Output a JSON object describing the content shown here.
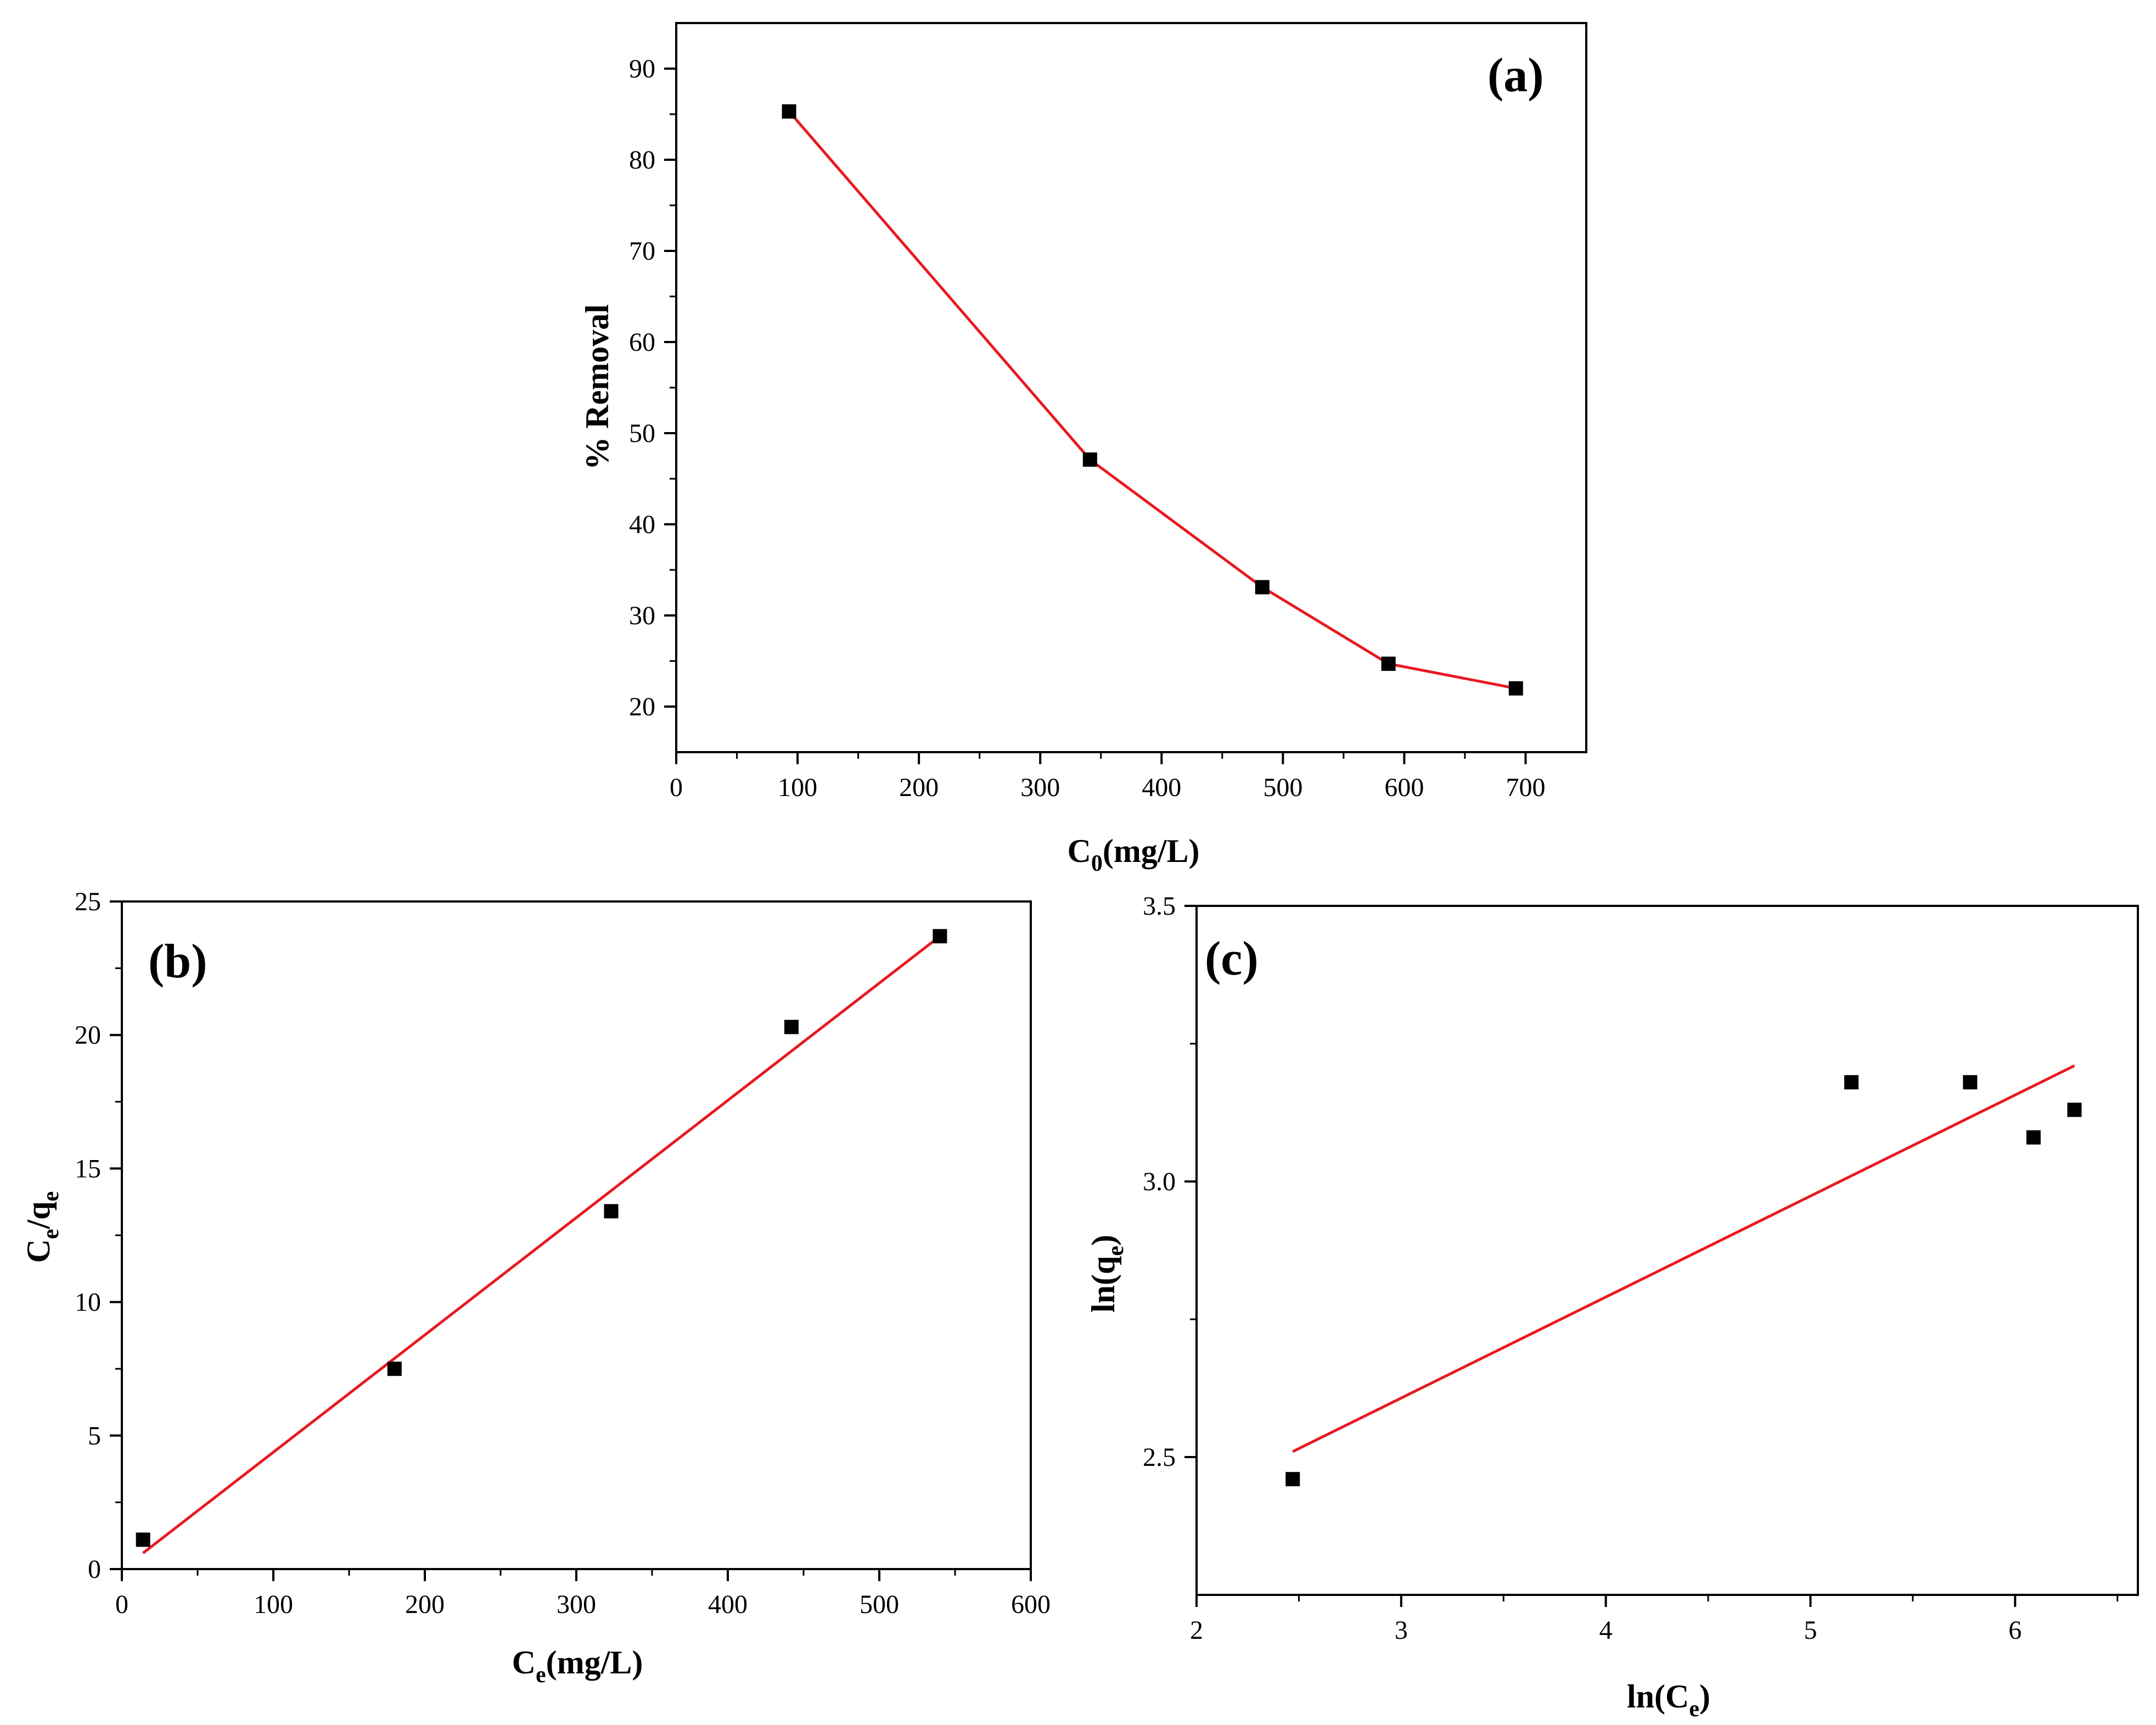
{
  "colors": {
    "line": "#e8191f",
    "marker": "#000000",
    "axis": "#000000",
    "background": "#ffffff"
  },
  "chart_data": [
    {
      "panel": "(a)",
      "type": "line",
      "marker": "square",
      "xlabel_main": "C",
      "xlabel_sub": "0",
      "xlabel_tail": "(mg/L)",
      "ylabel": "% Removal",
      "xlim": [
        0,
        750
      ],
      "ylim": [
        15,
        95
      ],
      "xticks": [
        "0",
        "100",
        "200",
        "300",
        "400",
        "500",
        "600",
        "700"
      ],
      "yticks": [
        "20",
        "30",
        "40",
        "50",
        "60",
        "70",
        "80",
        "90"
      ],
      "grid": false,
      "series": [
        {
          "x": [
            93,
            341,
            483,
            587,
            692
          ],
          "y": [
            85.3,
            47.1,
            33.1,
            24.7,
            22.0
          ]
        }
      ],
      "fit_line": {
        "x": [
          93,
          341,
          483,
          587,
          692
        ],
        "y": [
          85.3,
          47.1,
          33.1,
          24.7,
          22.0
        ]
      }
    },
    {
      "panel": "(b)",
      "type": "scatter",
      "marker": "square",
      "xlabel_main": "C",
      "xlabel_sub": "e",
      "xlabel_tail": "(mg/L)",
      "ylabel_main": "C",
      "ylabel_sub": "e",
      "ylabel_tail": "/q",
      "ylabel_sub2": "e",
      "xlim": [
        0,
        600
      ],
      "ylim": [
        0,
        25
      ],
      "xticks": [
        "0",
        "100",
        "200",
        "300",
        "400",
        "500",
        "600"
      ],
      "yticks": [
        "0",
        "5",
        "10",
        "15",
        "20",
        "25"
      ],
      "grid": false,
      "series": [
        {
          "x": [
            14,
            180,
            323,
            442,
            540
          ],
          "y": [
            1.1,
            7.5,
            13.4,
            20.3,
            23.7
          ]
        }
      ],
      "fit_line": {
        "x": [
          14,
          540
        ],
        "y": [
          0.6,
          23.7
        ]
      }
    },
    {
      "panel": "(c)",
      "type": "scatter",
      "marker": "square",
      "xlabel_main": "ln(C",
      "xlabel_sub": "e",
      "xlabel_tail": ")",
      "ylabel_main": "ln(q",
      "ylabel_sub": "e",
      "ylabel_tail": ")",
      "xlim": [
        2,
        6.6
      ],
      "ylim": [
        2.25,
        3.5
      ],
      "xticks": [
        "2",
        "3",
        "4",
        "5",
        "6"
      ],
      "yticks": [
        "2.5",
        "3.0",
        "3.5"
      ],
      "grid": false,
      "series": [
        {
          "x": [
            2.47,
            5.2,
            5.78,
            6.09,
            6.29
          ],
          "y": [
            2.46,
            3.18,
            3.18,
            3.08,
            3.13
          ]
        }
      ],
      "fit_line": {
        "x": [
          2.47,
          6.29
        ],
        "y": [
          2.51,
          3.21
        ]
      }
    }
  ]
}
